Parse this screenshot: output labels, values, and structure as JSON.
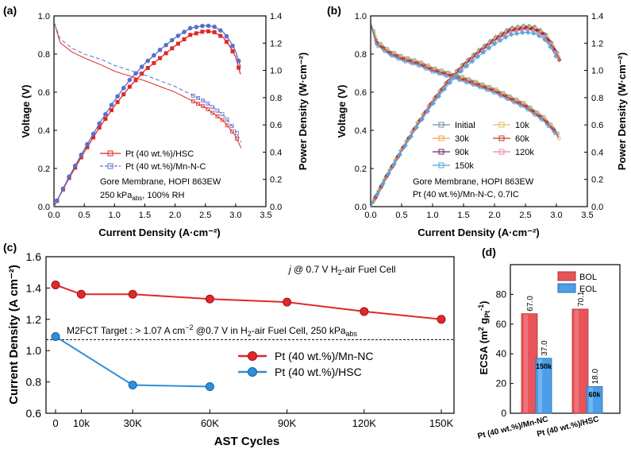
{
  "chart_data": [
    {
      "panel": "(a)",
      "type": "line",
      "xlabel": "Current Density (A·cm⁻²)",
      "ylabel": "Voltage (V)",
      "y2label": "Power Density (W·cm⁻²)",
      "xlim": [
        0,
        3.5
      ],
      "ylim": [
        0,
        1.0
      ],
      "y2lim": [
        0,
        1.4
      ],
      "x_ticks": [
        "0.0",
        "0.5",
        "1.0",
        "1.5",
        "2.0",
        "2.5",
        "3.0",
        "3.5"
      ],
      "y_ticks": [
        "0.0",
        "0.2",
        "0.4",
        "0.6",
        "0.8",
        "1.0"
      ],
      "y2_ticks": [
        "0.0",
        "0.2",
        "0.4",
        "0.6",
        "0.8",
        "1.0",
        "1.2",
        "1.4"
      ],
      "legend": [
        "Pt (40 wt.%)/HSC",
        "Pt (40 wt.%)/Mn-N-C"
      ],
      "annotation": {
        "line1": "Gore Membrane, HOPI 863EW",
        "line2_prefix": "250 kPa",
        "line2_sub": "abs",
        "line2_suffix": ", 100% RH"
      },
      "series": [
        {
          "name": "Pt (40 wt.%)/HSC",
          "color": "#e0282a",
          "voltage": {
            "x": [
              0.01,
              0.1,
              0.3,
              0.5,
              0.8,
              1.0,
              1.5,
              2.0,
              2.5,
              2.8,
              3.0,
              3.1
            ],
            "y": [
              0.96,
              0.86,
              0.81,
              0.78,
              0.74,
              0.71,
              0.66,
              0.6,
              0.52,
              0.45,
              0.37,
              0.3
            ]
          },
          "power": {
            "x": [
              0.0,
              0.25,
              0.5,
              0.75,
              1.0,
              1.25,
              1.5,
              1.75,
              2.0,
              2.25,
              2.5,
              2.65,
              2.8,
              2.9,
              3.0,
              3.1
            ],
            "y": [
              0.0,
              0.21,
              0.4,
              0.58,
              0.74,
              0.88,
              1.0,
              1.09,
              1.18,
              1.26,
              1.29,
              1.28,
              1.24,
              1.18,
              1.1,
              0.94
            ]
          }
        },
        {
          "name": "Pt (40 wt.%)/Mn-N-C",
          "color": "#5a6fc8",
          "voltage": {
            "x": [
              0.01,
              0.1,
              0.3,
              0.5,
              0.8,
              1.0,
              1.5,
              2.0,
              2.5,
              2.8,
              3.0,
              3.1
            ],
            "y": [
              0.96,
              0.88,
              0.83,
              0.8,
              0.77,
              0.74,
              0.69,
              0.63,
              0.55,
              0.48,
              0.4,
              0.33
            ]
          },
          "power": {
            "x": [
              0.0,
              0.25,
              0.5,
              0.75,
              1.0,
              1.25,
              1.5,
              1.75,
              2.0,
              2.25,
              2.5,
              2.65,
              2.8,
              2.9,
              3.0,
              3.1
            ],
            "y": [
              0.0,
              0.22,
              0.42,
              0.61,
              0.78,
              0.93,
              1.05,
              1.15,
              1.24,
              1.31,
              1.33,
              1.32,
              1.28,
              1.22,
              1.14,
              1.0
            ]
          }
        }
      ]
    },
    {
      "panel": "(b)",
      "type": "line",
      "xlabel": "Current Density (A·cm⁻²)",
      "ylabel": "Voltage (V)",
      "y2label": "Power Density (W·cm⁻²)",
      "xlim": [
        0,
        3.5
      ],
      "ylim": [
        0,
        1.0
      ],
      "y2lim": [
        0,
        1.4
      ],
      "x_ticks": [
        "0.0",
        "0.5",
        "1.0",
        "1.5",
        "2.0",
        "2.5",
        "3.0",
        "3.5"
      ],
      "y_ticks": [
        "0.0",
        "0.2",
        "0.4",
        "0.6",
        "0.8",
        "1.0"
      ],
      "y2_ticks": [
        "0.0",
        "0.2",
        "0.4",
        "0.6",
        "0.8",
        "1.0",
        "1.2",
        "1.4"
      ],
      "legend": [
        "Initial",
        "10k",
        "30k",
        "60k",
        "90k",
        "120k",
        "150k"
      ],
      "annotation": {
        "line1": "Gore Membrane, HOPI 863EW",
        "line2": "Pt (40 wt.%)/Mn-N-C, 0.7IC"
      },
      "series": [
        {
          "name": "Initial",
          "color": "#6d8fb0",
          "v0": 0.96,
          "pmax": 1.33,
          "xend": 3.05
        },
        {
          "name": "10k",
          "color": "#e6c35a",
          "v0": 0.96,
          "pmax": 1.32,
          "xend": 3.05
        },
        {
          "name": "30k",
          "color": "#f2a14e",
          "v0": 0.96,
          "pmax": 1.32,
          "xend": 3.05
        },
        {
          "name": "60k",
          "color": "#c0392b",
          "v0": 0.96,
          "pmax": 1.31,
          "xend": 3.05
        },
        {
          "name": "90k",
          "color": "#6a2a5a",
          "v0": 0.96,
          "pmax": 1.31,
          "xend": 3.05
        },
        {
          "name": "120k",
          "color": "#e88aa0",
          "v0": 0.96,
          "pmax": 1.3,
          "xend": 3.05
        },
        {
          "name": "150k",
          "color": "#4aa3d9",
          "v0": 0.96,
          "pmax": 1.28,
          "xend": 3.0
        }
      ]
    },
    {
      "panel": "(c)",
      "type": "line",
      "xlabel": "AST Cycles",
      "ylabel": "Current Density (A cm⁻²)",
      "categories": [
        "0",
        "10k",
        "30K",
        "60K",
        "90K",
        "120K",
        "150K"
      ],
      "x": [
        0,
        10,
        30,
        60,
        90,
        120,
        150
      ],
      "xlim": [
        0,
        150
      ],
      "ylim": [
        0.6,
        1.6
      ],
      "y_ticks": [
        "0.6",
        "0.8",
        "1.0",
        "1.2",
        "1.4",
        "1.6"
      ],
      "note": {
        "prefix": "j",
        "mid": " @ 0.7 V H",
        "sub": "2",
        "suffix": "-air Fuel Cell"
      },
      "target": {
        "value": 1.07,
        "text_a": "M2FCT Target : > 1.07 A cm",
        "text_sup": "−2",
        "text_b": " @0.7 V in H",
        "text_sub": "2",
        "text_c": "-air Fuel Cell, 250 kPa",
        "text_sub2": "abs"
      },
      "series": [
        {
          "name": "Pt (40 wt.%)/Mn-NC",
          "color": "#e0282a",
          "x": [
            0,
            10,
            30,
            60,
            90,
            120,
            150
          ],
          "values": [
            1.42,
            1.36,
            1.36,
            1.33,
            1.31,
            1.25,
            1.2
          ]
        },
        {
          "name": "Pt (40 wt.%)/HSC",
          "color": "#2f8fd9",
          "x": [
            0,
            30,
            60
          ],
          "values": [
            1.09,
            0.78,
            0.77
          ]
        }
      ]
    },
    {
      "panel": "(d)",
      "type": "bar",
      "ylabel_prefix": "ECSA (m",
      "ylabel_sup": "2",
      "ylabel_mid": " g",
      "ylabel_sub": "Pt",
      "ylabel_sup2": "-1",
      "ylabel_end": ")",
      "ylim": [
        0,
        100
      ],
      "y_ticks": [
        "0",
        "20",
        "40",
        "60",
        "80"
      ],
      "categories": [
        "Pt (40 wt.%)/Mn-NC",
        "Pt (40 wt.%)/HSC"
      ],
      "series": [
        {
          "name": "BOL",
          "color": "#e8545a",
          "values": [
            67.0,
            70.1
          ],
          "labels": [
            "67.0",
            "70.1"
          ]
        },
        {
          "name": "EOL",
          "color": "#4d9ee8",
          "values": [
            37.0,
            18.0
          ],
          "labels": [
            "37.0",
            "18.0"
          ]
        }
      ],
      "inner_labels": [
        "150k",
        "60k"
      ]
    }
  ]
}
